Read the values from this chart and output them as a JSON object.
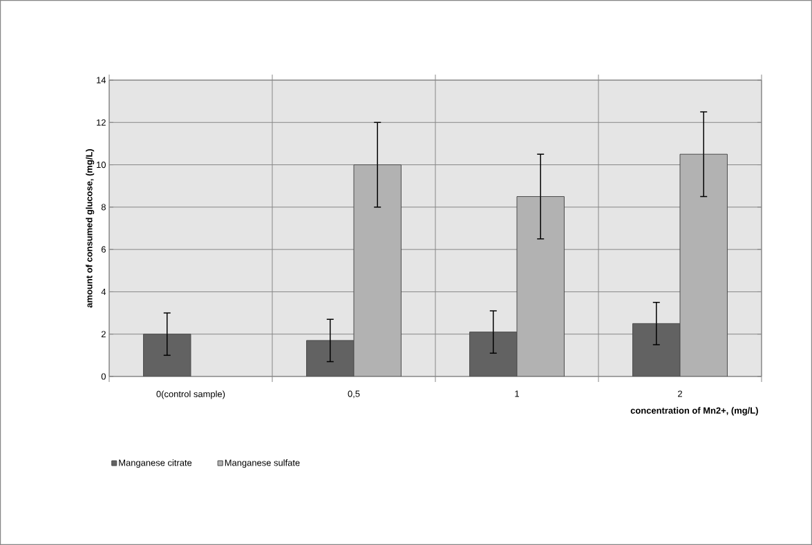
{
  "chart_data": {
    "type": "bar",
    "xlabel": "concentration of Mn2+, (mg/L)",
    "ylabel": "amount of consumed glucose, (mg/L)",
    "categories": [
      "0(control sample)",
      "0,5",
      "1",
      "2"
    ],
    "series": [
      {
        "name": "Manganese citrate",
        "color": "#626262",
        "values": [
          2,
          1.7,
          2.1,
          2.5
        ],
        "errors": [
          1,
          1,
          1,
          1
        ]
      },
      {
        "name": "Manganese sulfate",
        "color": "#b2b2b2",
        "values": [
          null,
          10,
          8.5,
          10.5
        ],
        "errors": [
          null,
          2,
          2,
          2
        ]
      }
    ],
    "ylim": [
      0,
      14
    ],
    "yticks": [
      0,
      2,
      4,
      6,
      8,
      10,
      12,
      14
    ],
    "grid": true,
    "legend": "bottom"
  }
}
